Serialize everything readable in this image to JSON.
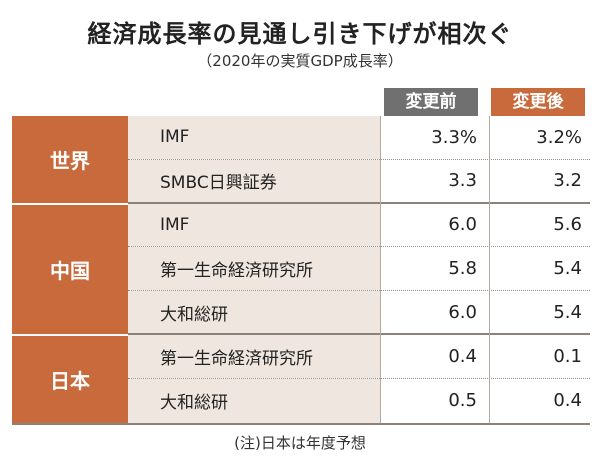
{
  "title": "経済成長率の見通し引き下げが相次ぐ",
  "subtitle": "（2020年の実質GDP成長率）",
  "columns": {
    "before": "変更前",
    "after": "変更後"
  },
  "regions": [
    {
      "name": "世界"
    },
    {
      "name": "中国"
    },
    {
      "name": "日本"
    }
  ],
  "rows": [
    {
      "source": "IMF",
      "before": "3.3%",
      "after": "3.2%"
    },
    {
      "source": "SMBC日興証券",
      "before": "3.3",
      "after": "3.2"
    },
    {
      "source": "IMF",
      "before": "6.0",
      "after": "5.6"
    },
    {
      "source": "第一生命経済研究所",
      "before": "5.8",
      "after": "5.4"
    },
    {
      "source": "大和総研",
      "before": "6.0",
      "after": "5.4"
    },
    {
      "source": "第一生命経済研究所",
      "before": "0.4",
      "after": "0.1"
    },
    {
      "source": "大和総研",
      "before": "0.5",
      "after": "0.4"
    }
  ],
  "note": "(注)日本は年度予想",
  "colors": {
    "accent": "#c86a3c",
    "header_before": "#707070",
    "source_bg": "#eee6df"
  }
}
